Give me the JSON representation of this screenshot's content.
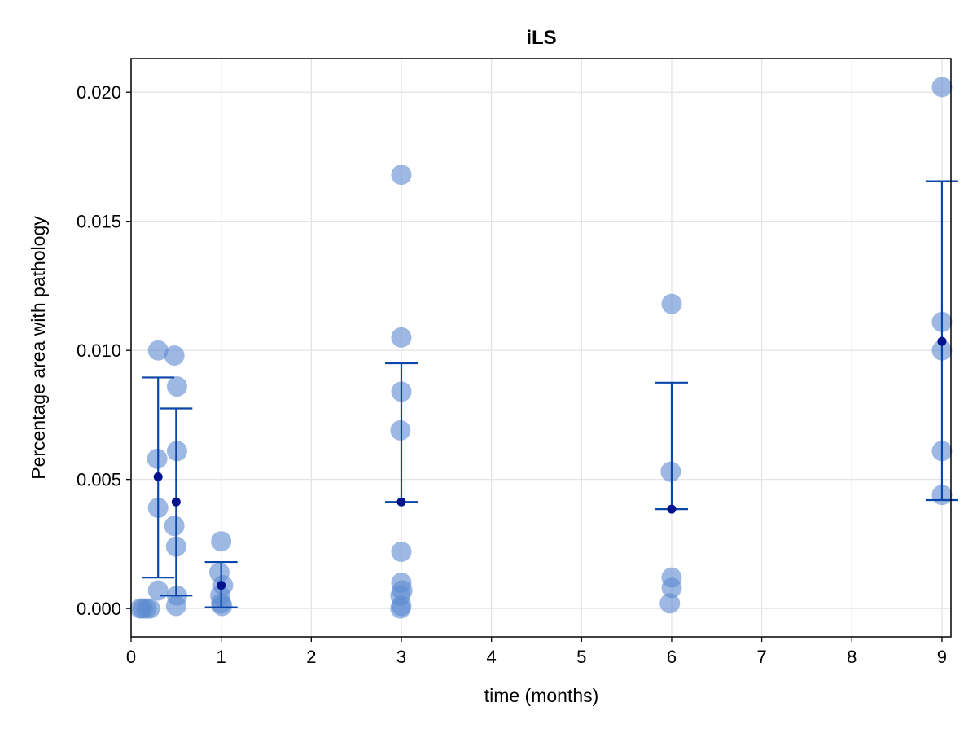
{
  "chart_data": {
    "type": "scatter",
    "title": "iLS",
    "xlabel": "time (months)",
    "ylabel": "Percentage area with pathology",
    "xlim": [
      0,
      9.1
    ],
    "ylim": [
      -0.0011,
      0.0213
    ],
    "xticks": [
      0,
      1,
      2,
      3,
      4,
      5,
      6,
      7,
      8,
      9
    ],
    "xtick_labels": [
      "0",
      "1",
      "2",
      "3",
      "4",
      "5",
      "6",
      "7",
      "8",
      "9"
    ],
    "yticks": [
      0.0,
      0.005,
      0.01,
      0.015,
      0.02
    ],
    "ytick_labels": [
      "0.000",
      "0.005",
      "0.010",
      "0.015",
      "0.020"
    ],
    "grid": true,
    "colors": {
      "points": "#5b8bd0",
      "errorbar": "#0a47a8",
      "mean": "#00128c"
    },
    "series": [
      {
        "kind": "individual",
        "points": [
          {
            "x": 0.1,
            "y": 0.0
          },
          {
            "x": 0.13,
            "y": 0.0
          },
          {
            "x": 0.17,
            "y": 0.0
          },
          {
            "x": 0.21,
            "y": 0.0
          },
          {
            "x": 0.3,
            "y": 0.01
          },
          {
            "x": 0.29,
            "y": 0.0058
          },
          {
            "x": 0.3,
            "y": 0.0039
          },
          {
            "x": 0.3,
            "y": 0.0007
          },
          {
            "x": 0.48,
            "y": 0.0098
          },
          {
            "x": 0.51,
            "y": 0.0086
          },
          {
            "x": 0.51,
            "y": 0.0061
          },
          {
            "x": 0.48,
            "y": 0.0032
          },
          {
            "x": 0.5,
            "y": 0.0024
          },
          {
            "x": 0.51,
            "y": 0.0005
          },
          {
            "x": 0.5,
            "y": 0.0001
          },
          {
            "x": 1.0,
            "y": 0.0026
          },
          {
            "x": 0.98,
            "y": 0.0014
          },
          {
            "x": 1.02,
            "y": 0.0009
          },
          {
            "x": 0.99,
            "y": 0.0005
          },
          {
            "x": 1.0,
            "y": 0.0002
          },
          {
            "x": 1.01,
            "y": 0.0001
          },
          {
            "x": 3.0,
            "y": 0.0168
          },
          {
            "x": 3.0,
            "y": 0.0105
          },
          {
            "x": 3.0,
            "y": 0.0084
          },
          {
            "x": 2.99,
            "y": 0.0069
          },
          {
            "x": 3.0,
            "y": 0.0022
          },
          {
            "x": 3.0,
            "y": 0.001
          },
          {
            "x": 3.01,
            "y": 0.0007
          },
          {
            "x": 2.99,
            "y": 0.0005
          },
          {
            "x": 3.0,
            "y": 0.0001
          },
          {
            "x": 2.99,
            "y": 0.0
          },
          {
            "x": 6.0,
            "y": 0.0118
          },
          {
            "x": 5.99,
            "y": 0.0053
          },
          {
            "x": 6.0,
            "y": 0.0012
          },
          {
            "x": 6.0,
            "y": 0.0008
          },
          {
            "x": 5.98,
            "y": 0.0002
          },
          {
            "x": 9.0,
            "y": 0.0202
          },
          {
            "x": 9.0,
            "y": 0.0111
          },
          {
            "x": 9.0,
            "y": 0.01
          },
          {
            "x": 9.0,
            "y": 0.0061
          },
          {
            "x": 9.0,
            "y": 0.0044
          }
        ]
      },
      {
        "kind": "mean_with_error",
        "points": [
          {
            "x": 0.3,
            "mean": 0.0051,
            "low": 0.0012,
            "high": 0.00895
          },
          {
            "x": 0.5,
            "mean": 0.00413,
            "low": 0.0005,
            "high": 0.00775
          },
          {
            "x": 1.0,
            "mean": 0.0009,
            "low": 5e-05,
            "high": 0.0018
          },
          {
            "x": 3.0,
            "mean": 0.00413,
            "low": 0.00413,
            "high": 0.0095
          },
          {
            "x": 6.0,
            "mean": 0.00385,
            "low": 0.00385,
            "high": 0.00875
          },
          {
            "x": 9.0,
            "mean": 0.01035,
            "low": 0.0042,
            "high": 0.01655
          }
        ]
      }
    ]
  }
}
